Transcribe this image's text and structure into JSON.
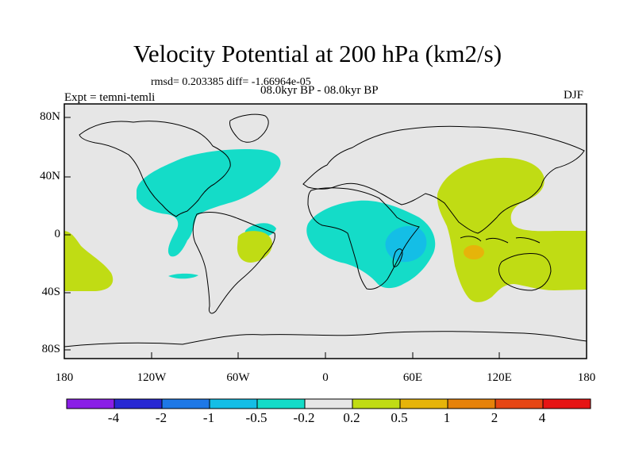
{
  "title": "Velocity Potential at 200 hPa (km2/s)",
  "stats": "rmsd= 0.203385 diff= -1.66964e-05",
  "period": "08.0kyr BP - 08.0kyr BP",
  "expt": "Expt = temni-temli",
  "season": "DJF",
  "lat_labels": [
    "80N",
    "40N",
    "0",
    "40S",
    "80S"
  ],
  "lon_labels": [
    "180",
    "120W",
    "60W",
    "0",
    "60E",
    "120E",
    "180"
  ],
  "colorbar": {
    "labels": [
      "-4",
      "-2",
      "-1",
      "-0.5",
      "-0.2",
      "0.2",
      "0.5",
      "1",
      "2",
      "4"
    ],
    "colors": [
      "#8a1ee6",
      "#2828d2",
      "#1e78e6",
      "#14bee6",
      "#14dcc8",
      "#e6e6e6",
      "#c0dc14",
      "#e6b40a",
      "#e6820a",
      "#e64614",
      "#e61414"
    ]
  },
  "colors": {
    "ocean": "#e6e6e6",
    "coast": "#000000"
  }
}
